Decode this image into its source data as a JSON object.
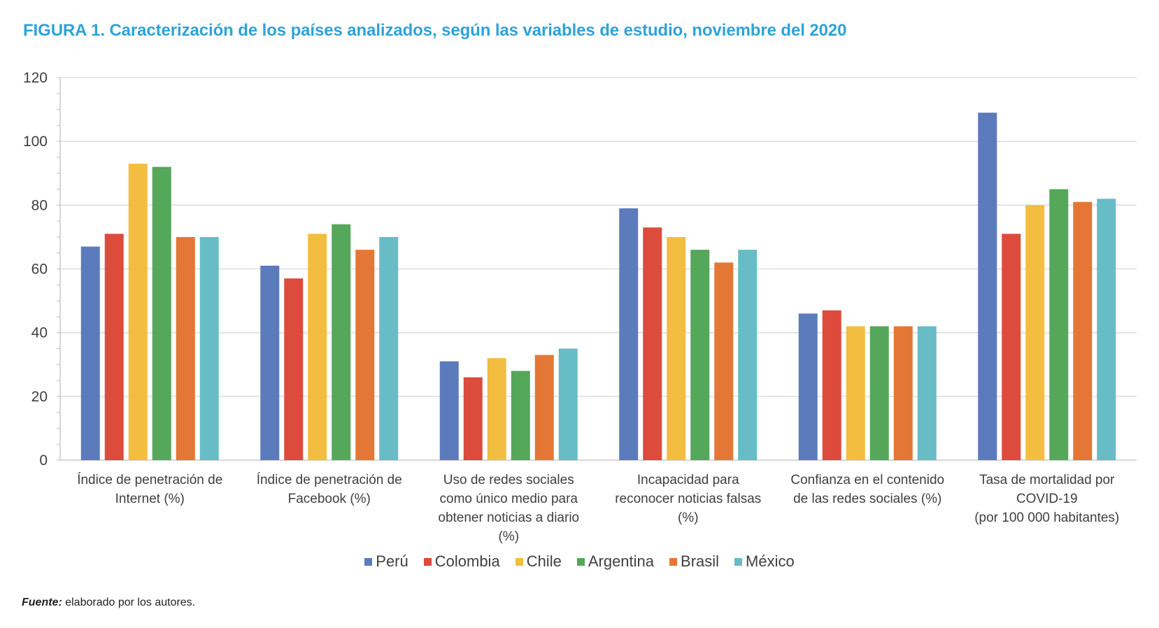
{
  "title": "FIGURA 1. Caracterización de los países analizados, según las variables de estudio, noviembre del 2020",
  "source": {
    "label": "Fuente:",
    "text": " elaborado por los autores."
  },
  "chart_data": {
    "type": "bar",
    "ylim": [
      0,
      120
    ],
    "yticks": [
      "0",
      "20",
      "40",
      "60",
      "80",
      "100",
      "120"
    ],
    "grid": true,
    "legend_position": "bottom",
    "categories": [
      [
        "Índice de penetración de",
        "Internet (%)"
      ],
      [
        "Índice de penetración de",
        "Facebook (%)"
      ],
      [
        "Uso de redes sociales",
        "como único medio para",
        "obtener noticias a diario",
        "(%)"
      ],
      [
        "Incapacidad para",
        "reconocer noticias falsas",
        "(%)"
      ],
      [
        "Confianza en el contenido",
        "de las redes sociales (%)"
      ],
      [
        "Tasa de mortalidad por",
        "COVID-19",
        "(por 100 000 habitantes)"
      ]
    ],
    "series": [
      {
        "name": "Perú",
        "color": "#5b7bbd",
        "values": [
          67,
          61,
          31,
          79,
          46,
          109
        ]
      },
      {
        "name": "Colombia",
        "color": "#dc4b3c",
        "values": [
          71,
          57,
          26,
          73,
          47,
          71
        ]
      },
      {
        "name": "Chile",
        "color": "#f3bd3f",
        "values": [
          93,
          71,
          32,
          70,
          42,
          80
        ]
      },
      {
        "name": "Argentina",
        "color": "#55a75a",
        "values": [
          92,
          74,
          28,
          66,
          42,
          85
        ]
      },
      {
        "name": "Brasil",
        "color": "#e47736",
        "values": [
          70,
          66,
          33,
          62,
          42,
          81
        ]
      },
      {
        "name": "México",
        "color": "#67bcc6",
        "values": [
          70,
          70,
          35,
          66,
          42,
          82
        ]
      }
    ]
  }
}
